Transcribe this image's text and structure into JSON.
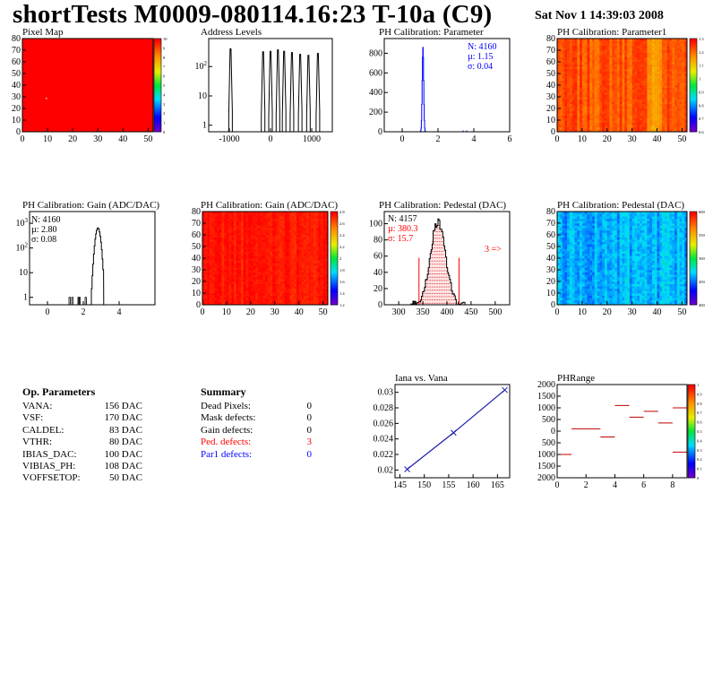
{
  "header": {
    "title": "shortTests M0009-080114.16:23 T-10a (C9)",
    "timestamp": "Sat Nov  1 14:39:03 2008"
  },
  "colors": {
    "hist_red": "#ff0000",
    "hist_blue": "#0000ff",
    "marker_blue": "#1a1aa8"
  },
  "chart_data": [
    {
      "id": "pixel-map",
      "type": "heatmap",
      "title": "Pixel Map",
      "xlim": [
        0,
        52
      ],
      "ylim": [
        0,
        80
      ],
      "xticks": [
        "0",
        "10",
        "20",
        "30",
        "40",
        "50"
      ],
      "yticks": [
        "0",
        "10",
        "20",
        "30",
        "40",
        "50",
        "60",
        "70",
        "80"
      ],
      "zlim": [
        0,
        10
      ],
      "zticks": [
        "0",
        "1",
        "2",
        "3",
        "4",
        "5",
        "6",
        "7",
        "8",
        "9",
        "10"
      ],
      "uniform_value": 10
    },
    {
      "id": "address-levels",
      "type": "bar",
      "title": "Address Levels",
      "log_y": true,
      "xlim": [
        -1500,
        1500
      ],
      "xticks": [
        "-1000",
        "0",
        "1000"
      ],
      "yticks": [
        "1",
        "10",
        "10²"
      ],
      "peaks_x": [
        -970,
        -180,
        0,
        180,
        330,
        520,
        720,
        920,
        1150
      ],
      "peaks_y": [
        400,
        320,
        330,
        370,
        330,
        300,
        260,
        240,
        280
      ]
    },
    {
      "id": "ph-param",
      "type": "bar",
      "title": "PH Calibration: Parameter",
      "xlim": [
        -1,
        6
      ],
      "ylim": [
        0,
        950
      ],
      "xticks": [
        "0",
        "2",
        "4",
        "6"
      ],
      "yticks": [
        "0",
        "200",
        "400",
        "600",
        "800"
      ],
      "stats": [
        "N: 4160",
        "µ: 1.15",
        "σ: 0.04"
      ],
      "peak_x": 1.15,
      "peak_sigma": 0.04,
      "peak_y": 860,
      "outliers_x": [
        0.0,
        3.4,
        3.6
      ]
    },
    {
      "id": "ph-param1",
      "type": "heatmap",
      "title": "PH Calibration: Parameter1",
      "xlim": [
        0,
        52
      ],
      "ylim": [
        0,
        80
      ],
      "xticks": [
        "0",
        "10",
        "20",
        "30",
        "40",
        "50"
      ],
      "yticks": [
        "0",
        "10",
        "20",
        "30",
        "40",
        "50",
        "60",
        "70",
        "80"
      ],
      "zticks": [
        "0.6",
        "0.7",
        "0.8",
        "0.9",
        "1",
        "1.1",
        "1.2",
        "1.3"
      ]
    },
    {
      "id": "gain-hist",
      "type": "bar",
      "title": "PH Calibration: Gain (ADC/DAC)",
      "log_y": true,
      "xlim": [
        -1,
        6
      ],
      "xticks": [
        "0",
        "2",
        "4"
      ],
      "yticks": [
        "1",
        "10",
        "10²",
        "10³"
      ],
      "stats": [
        "N: 4160",
        "µ: 2.80",
        "σ: 0.08"
      ],
      "peak_x": 2.8,
      "peak_sigma": 0.08,
      "peak_y": 650,
      "outliers_x": [
        1.2,
        1.35,
        1.7,
        1.75,
        2.1
      ]
    },
    {
      "id": "gain-map",
      "type": "heatmap",
      "title": "PH Calibration: Gain (ADC/DAC)",
      "xlim": [
        0,
        52
      ],
      "ylim": [
        0,
        80
      ],
      "xticks": [
        "0",
        "10",
        "20",
        "30",
        "40",
        "50"
      ],
      "yticks": [
        "0",
        "10",
        "20",
        "30",
        "40",
        "50",
        "60",
        "70",
        "80"
      ],
      "zticks": [
        "1.2",
        "1.4",
        "1.6",
        "1.8",
        "2",
        "2.2",
        "2.4",
        "2.6",
        "2.8"
      ]
    },
    {
      "id": "pedestal-hist",
      "type": "bar",
      "title": "PH Calibration: Pedestal (DAC)",
      "xlim": [
        270,
        530
      ],
      "ylim": [
        0,
        115
      ],
      "xticks": [
        "300",
        "350",
        "400",
        "450",
        "500"
      ],
      "yticks": [
        "0",
        "20",
        "40",
        "60",
        "80",
        "100"
      ],
      "stats_black": "N: 4157",
      "stats_red": [
        "µ: 380.3",
        "σ: 15.7"
      ],
      "arrow_label": "3 =>",
      "mean": 380.3,
      "sigma": 15.7,
      "peak_y": 102,
      "cut_lines_x": [
        342,
        425
      ]
    },
    {
      "id": "pedestal-map",
      "type": "heatmap",
      "title": "PH Calibration: Pedestal (DAC)",
      "xlim": [
        0,
        52
      ],
      "ylim": [
        0,
        80
      ],
      "xticks": [
        "0",
        "10",
        "20",
        "30",
        "40",
        "50"
      ],
      "yticks": [
        "0",
        "10",
        "20",
        "30",
        "40",
        "50",
        "60",
        "70",
        "80"
      ],
      "zticks": [
        "400",
        "450",
        "500",
        "550",
        "600"
      ]
    },
    {
      "id": "iana-vana",
      "type": "line",
      "title": "Iana vs. Vana",
      "xlim": [
        144,
        167.5
      ],
      "ylim": [
        0.019,
        0.031
      ],
      "xticks": [
        "145",
        "150",
        "155",
        "160",
        "165"
      ],
      "yticks": [
        "0.02",
        "0.022",
        "0.024",
        "0.026",
        "0.028",
        "0.03"
      ],
      "x": [
        146.5,
        156,
        166.5
      ],
      "y": [
        0.0201,
        0.0248,
        0.0303
      ]
    },
    {
      "id": "phrange",
      "type": "heatmap",
      "title": "PHRange",
      "xlim": [
        0,
        9
      ],
      "ylim": [
        -2000,
        2000
      ],
      "xticks": [
        "0",
        "2",
        "4",
        "6",
        "8"
      ],
      "yticks": [
        "2000",
        "1500",
        "1000",
        "500",
        "0",
        "500",
        "1000",
        "1500",
        "2000"
      ],
      "zticks": [
        "0",
        "0.1",
        "0.2",
        "0.3",
        "0.4",
        "0.5",
        "0.6",
        "0.7",
        "0.8",
        "0.9",
        "1"
      ],
      "segments": [
        {
          "x0": 0,
          "x1": 1,
          "y": -1000
        },
        {
          "x0": 1,
          "x1": 3,
          "y": 100
        },
        {
          "x0": 3,
          "x1": 4,
          "y": -250
        },
        {
          "x0": 4,
          "x1": 5,
          "y": 1100
        },
        {
          "x0": 5,
          "x1": 6,
          "y": 600
        },
        {
          "x0": 6,
          "x1": 7,
          "y": 850
        },
        {
          "x0": 7,
          "x1": 8,
          "y": 350
        },
        {
          "x0": 8,
          "x1": 9,
          "y": 1000
        },
        {
          "x0": 8,
          "x1": 9,
          "y": -900
        }
      ]
    }
  ],
  "op_params": {
    "title": "Op. Parameters",
    "rows": [
      {
        "k": "VANA:",
        "v": "156 DAC"
      },
      {
        "k": "VSF:",
        "v": "170 DAC"
      },
      {
        "k": "CALDEL:",
        "v": "83 DAC"
      },
      {
        "k": "VTHR:",
        "v": "80 DAC"
      },
      {
        "k": "IBIAS_DAC:",
        "v": "100 DAC"
      },
      {
        "k": "VIBIAS_PH:",
        "v": "108 DAC"
      },
      {
        "k": "VOFFSETOP:",
        "v": "50 DAC"
      }
    ]
  },
  "summary": {
    "title": "Summary",
    "rows": [
      {
        "k": "Dead Pixels:",
        "v": "0",
        "color": "#000000"
      },
      {
        "k": "Mask defects:",
        "v": "0",
        "color": "#000000"
      },
      {
        "k": "Gain defects:",
        "v": "0",
        "color": "#000000"
      },
      {
        "k": "Ped. defects:",
        "v": "3",
        "color": "#ff0000"
      },
      {
        "k": "Par1 defects:",
        "v": "0",
        "color": "#0000ff"
      }
    ]
  }
}
